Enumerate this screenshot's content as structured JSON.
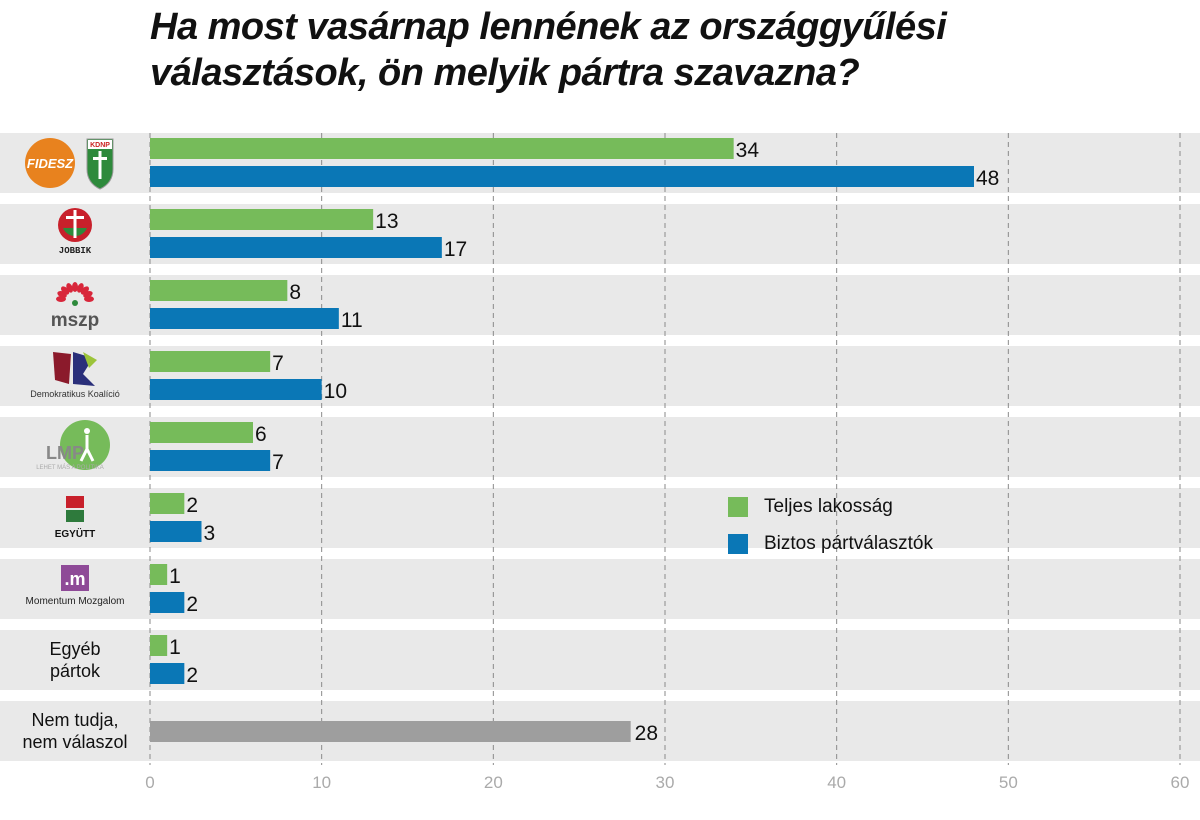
{
  "title_line1": "Ha most vasárnap lennének az országgyűlési",
  "title_line2": "választások, ön melyik pártra szavazna?",
  "colors": {
    "teljes": "#76bb5a",
    "biztos": "#0a77b6",
    "undecided": "#9e9e9e",
    "band": "#e9e9e9"
  },
  "chart_data": {
    "type": "bar",
    "orientation": "horizontal",
    "title": "Ha most vasárnap lennének az országgyűlési választások, ön melyik pártra szavazna?",
    "categories": [
      "FIDESZ KDNP",
      "JOBBIK",
      "mszp",
      "Demokratikus Koalíció",
      "LMP",
      "EGYÜTT",
      "Momentum Mozgalom",
      "Egyéb pártok",
      "Nem tudja, nem válaszol"
    ],
    "category_logos": [
      "fidesz-kdnp-logo",
      "jobbik-logo",
      "mszp-logo",
      "dk-logo",
      "lmp-logo",
      "egyutt-logo",
      "momentum-logo",
      null,
      null
    ],
    "category_text_labels": [
      "",
      "",
      "",
      "",
      "",
      "",
      "",
      "Egyéb\npártok",
      "Nem tudja,\nnem válaszol"
    ],
    "series": [
      {
        "name": "Teljes lakosság",
        "values": [
          34,
          13,
          8,
          7,
          6,
          2,
          1,
          1,
          null
        ]
      },
      {
        "name": "Biztos pártválasztók",
        "values": [
          48,
          17,
          11,
          10,
          7,
          3,
          2,
          2,
          null
        ]
      }
    ],
    "undecided_value": 28,
    "xlim": [
      0,
      60
    ],
    "xticks": [
      0,
      10,
      20,
      30,
      40,
      50,
      60
    ],
    "grid": "vertical dashed",
    "legend_position": "center-right"
  }
}
